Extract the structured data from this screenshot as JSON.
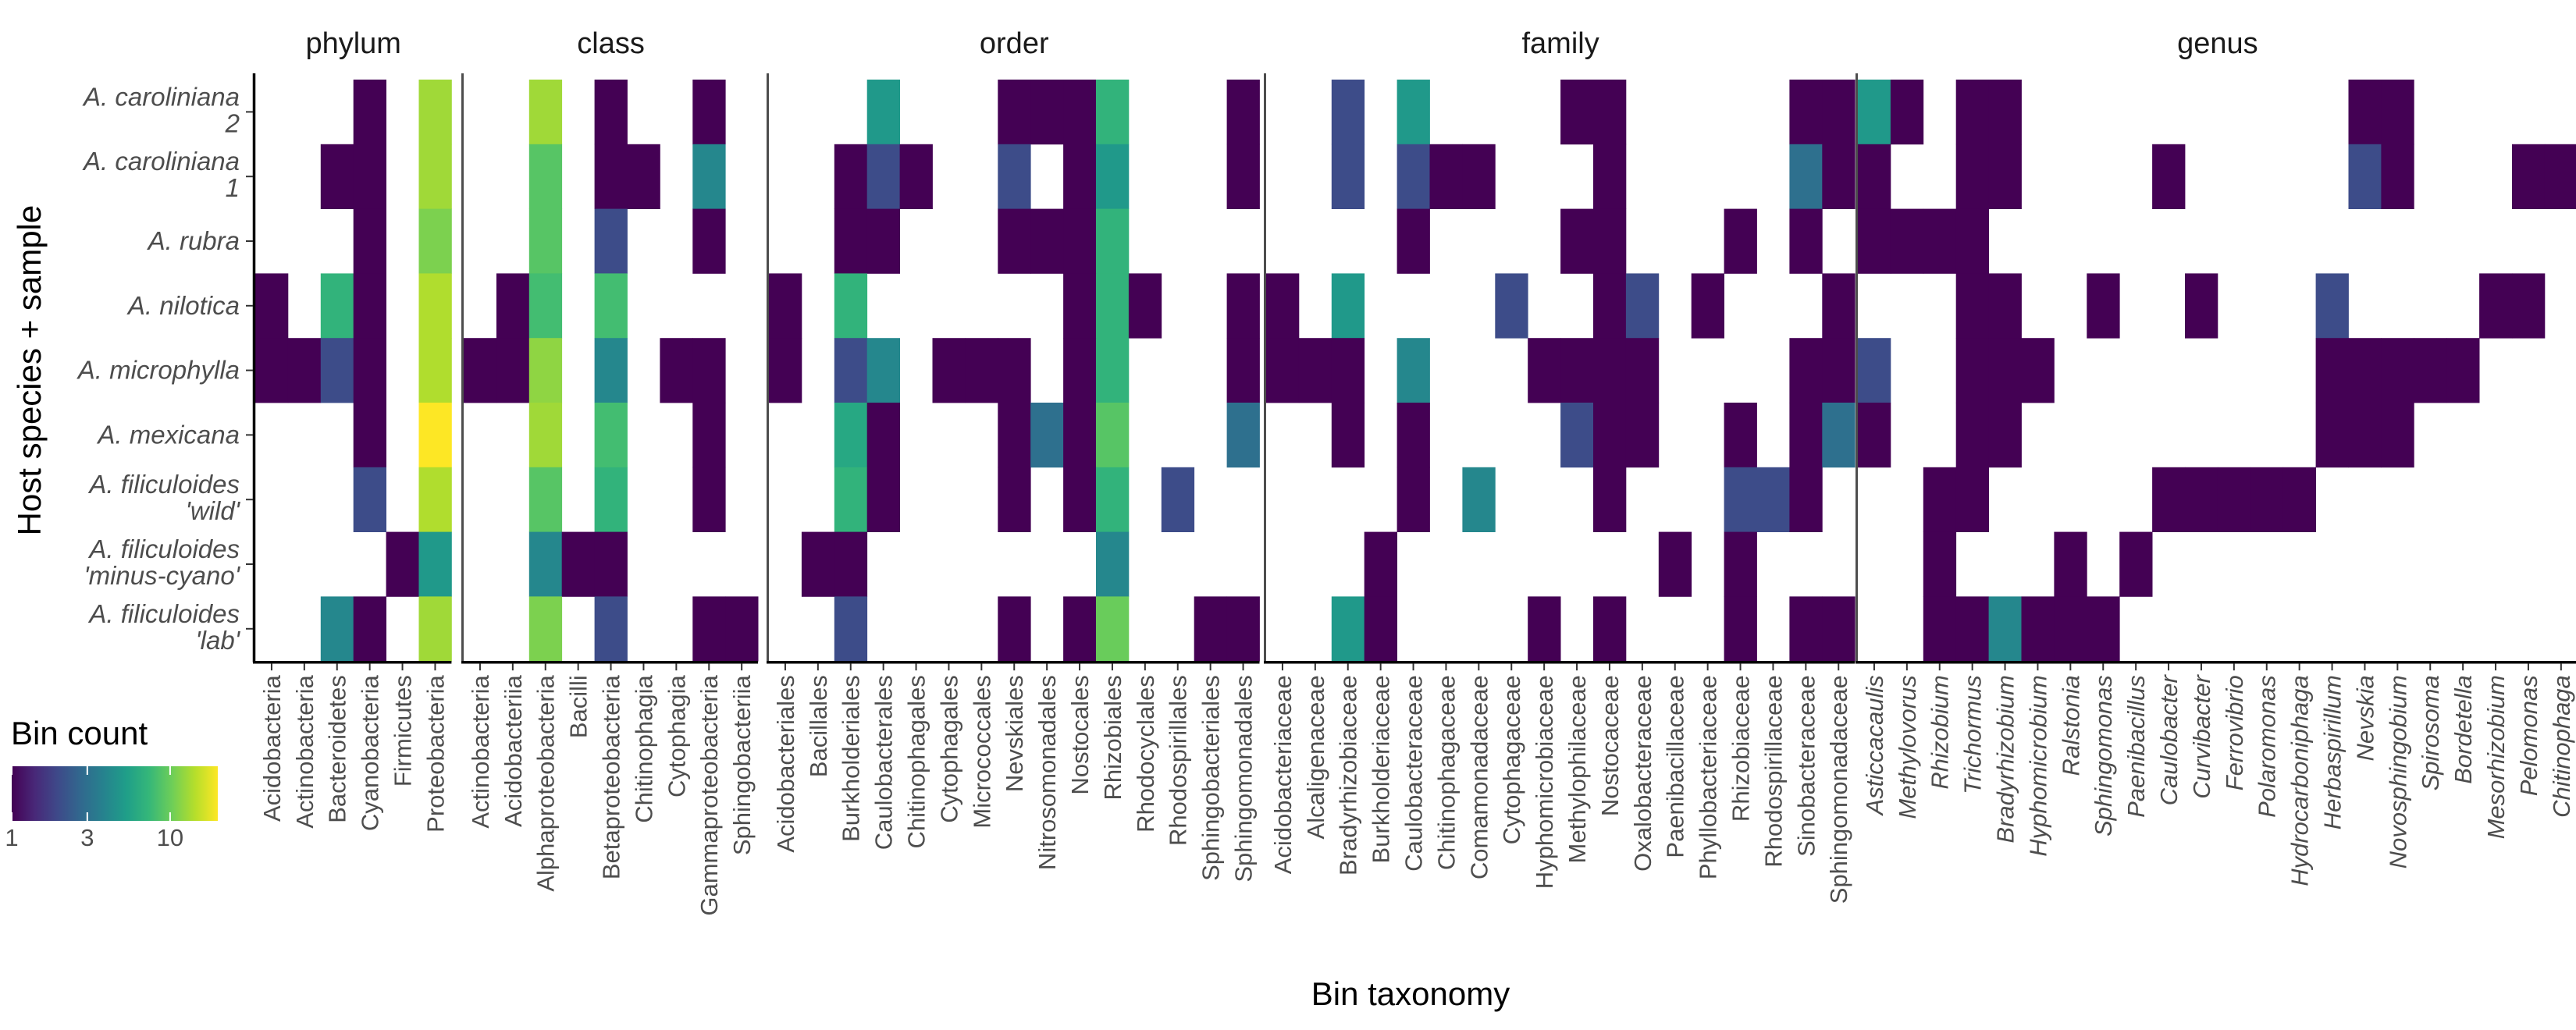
{
  "chart_data": {
    "type": "heatmap",
    "xlabel": "Bin taxonomy",
    "ylabel": "Host species + sample",
    "rows": [
      {
        "species": "A. caroliniana",
        "sample": "2"
      },
      {
        "species": "A. caroliniana",
        "sample": "1"
      },
      {
        "species": "A. rubra",
        "sample": ""
      },
      {
        "species": "A. nilotica",
        "sample": ""
      },
      {
        "species": "A. microphylla",
        "sample": ""
      },
      {
        "species": "A. mexicana",
        "sample": ""
      },
      {
        "species": "A. filiculoides",
        "sample": "'wild'"
      },
      {
        "species": "A. filiculoides",
        "sample": "'minus-cyano'"
      },
      {
        "species": "A. filiculoides",
        "sample": "'lab'"
      }
    ],
    "legend": {
      "title": "Bin count",
      "scale": "log",
      "min": 1,
      "max": 20,
      "ticks": [
        1,
        3,
        10
      ],
      "colors": [
        "#440154",
        "#482878",
        "#3e4989",
        "#31688e",
        "#26828e",
        "#1f9e89",
        "#35b779",
        "#6ece58",
        "#b5de2b",
        "#fde725"
      ]
    },
    "panels": [
      {
        "title": "phylum",
        "italic": false,
        "categories": [
          "Acidobacteria",
          "Actinobacteria",
          "Bacteroidetes",
          "Cyanobacteria",
          "Firmicutes",
          "Proteobacteria"
        ],
        "values": [
          [
            null,
            null,
            null,
            1,
            null,
            13
          ],
          [
            null,
            null,
            1,
            1,
            null,
            13
          ],
          [
            null,
            null,
            null,
            1,
            null,
            11
          ],
          [
            1,
            null,
            7,
            1,
            null,
            14
          ],
          [
            1,
            1,
            2,
            1,
            null,
            14
          ],
          [
            null,
            null,
            null,
            1,
            null,
            20
          ],
          [
            null,
            null,
            null,
            2,
            null,
            14
          ],
          [
            null,
            null,
            null,
            null,
            1,
            5
          ],
          [
            null,
            null,
            4,
            1,
            null,
            13
          ]
        ]
      },
      {
        "title": "class",
        "italic": false,
        "categories": [
          "Actinobacteria",
          "Acidobacteriia",
          "Alphaproteobacteria",
          "Bacilli",
          "Betaproteobacteria",
          "Chitinophagia",
          "Cytophagia",
          "Gammaproteobacteria",
          "Sphingobacteriia"
        ],
        "values": [
          [
            null,
            null,
            13,
            null,
            1,
            null,
            null,
            1,
            null
          ],
          [
            null,
            null,
            9,
            null,
            1,
            1,
            null,
            4,
            null
          ],
          [
            null,
            null,
            9,
            null,
            2,
            null,
            null,
            1,
            null
          ],
          [
            null,
            1,
            8,
            null,
            8,
            null,
            null,
            null,
            null
          ],
          [
            1,
            1,
            12,
            null,
            4,
            null,
            1,
            1,
            null
          ],
          [
            null,
            null,
            13,
            null,
            8,
            null,
            null,
            1,
            null
          ],
          [
            null,
            null,
            9,
            null,
            7,
            null,
            null,
            1,
            null
          ],
          [
            null,
            null,
            4,
            1,
            1,
            null,
            null,
            null,
            null
          ],
          [
            null,
            null,
            11,
            null,
            2,
            null,
            null,
            1,
            1
          ]
        ]
      },
      {
        "title": "order",
        "italic": false,
        "categories": [
          "Acidobacteriales",
          "Bacillales",
          "Burkholderiales",
          "Caulobacterales",
          "Chitinophagales",
          "Cytophagales",
          "Micrococcales",
          "Nevskiales",
          "Nitrosomonadales",
          "Nostocales",
          "Rhizobiales",
          "Rhodocyclales",
          "Rhodospirillales",
          "Sphingobacteriales",
          "Sphingomonadales"
        ],
        "values": [
          [
            null,
            null,
            null,
            5,
            null,
            null,
            null,
            1,
            1,
            1,
            7,
            null,
            null,
            null,
            1
          ],
          [
            null,
            null,
            1,
            2,
            1,
            null,
            null,
            2,
            null,
            1,
            5,
            null,
            null,
            null,
            1
          ],
          [
            null,
            null,
            1,
            1,
            null,
            null,
            null,
            1,
            1,
            1,
            7,
            null,
            null,
            null,
            null
          ],
          [
            1,
            null,
            7,
            null,
            null,
            null,
            null,
            null,
            null,
            1,
            7,
            1,
            null,
            null,
            1
          ],
          [
            1,
            null,
            2,
            4,
            null,
            1,
            1,
            1,
            null,
            1,
            7,
            null,
            null,
            null,
            1
          ],
          [
            null,
            null,
            6,
            1,
            null,
            null,
            null,
            1,
            3,
            1,
            9,
            null,
            null,
            null,
            3
          ],
          [
            null,
            null,
            7,
            1,
            null,
            null,
            null,
            1,
            null,
            1,
            7,
            null,
            2,
            null,
            null
          ],
          [
            null,
            1,
            1,
            null,
            null,
            null,
            null,
            null,
            null,
            null,
            4,
            null,
            null,
            null,
            null
          ],
          [
            null,
            null,
            2,
            null,
            null,
            null,
            null,
            1,
            null,
            1,
            10,
            null,
            null,
            1,
            1
          ]
        ]
      },
      {
        "title": "family",
        "italic": false,
        "categories": [
          "Acidobacteriaceae",
          "Alcaligenaceae",
          "Bradyrhizobiaceae",
          "Burkholderiaceae",
          "Caulobacteraceae",
          "Chitinophagaceae",
          "Comamonadaceae",
          "Cytophagaceae",
          "Hyphomicrobiaceae",
          "Methylophilaceae",
          "Nostocaceae",
          "Oxalobacteraceae",
          "Paenibacillaceae",
          "Phyllobacteriaceae",
          "Rhizobiaceae",
          "Rhodospirillaceae",
          "Sinobacteraceae",
          "Sphingomonadaceae"
        ],
        "values": [
          [
            null,
            null,
            2,
            null,
            5,
            null,
            null,
            null,
            null,
            1,
            1,
            null,
            null,
            null,
            null,
            null,
            1,
            1
          ],
          [
            null,
            null,
            2,
            null,
            2,
            1,
            1,
            null,
            null,
            null,
            1,
            null,
            null,
            null,
            null,
            null,
            3,
            1
          ],
          [
            null,
            null,
            null,
            null,
            1,
            null,
            null,
            null,
            null,
            1,
            1,
            null,
            null,
            null,
            1,
            null,
            1,
            null
          ],
          [
            1,
            null,
            5,
            null,
            null,
            null,
            null,
            2,
            null,
            null,
            1,
            2,
            null,
            1,
            null,
            null,
            null,
            1
          ],
          [
            1,
            1,
            1,
            null,
            4,
            null,
            null,
            null,
            1,
            1,
            1,
            1,
            null,
            null,
            null,
            null,
            1,
            1
          ],
          [
            null,
            null,
            1,
            null,
            1,
            null,
            null,
            null,
            null,
            2,
            1,
            1,
            null,
            null,
            1,
            null,
            1,
            3
          ],
          [
            null,
            null,
            null,
            null,
            1,
            null,
            4,
            null,
            null,
            null,
            1,
            null,
            null,
            null,
            2,
            2,
            1,
            null
          ],
          [
            null,
            null,
            null,
            1,
            null,
            null,
            null,
            null,
            null,
            null,
            null,
            null,
            1,
            null,
            1,
            null,
            null,
            null
          ],
          [
            null,
            null,
            5,
            1,
            null,
            null,
            null,
            null,
            1,
            null,
            1,
            null,
            null,
            null,
            1,
            null,
            1,
            1
          ]
        ]
      },
      {
        "title": "genus",
        "italic": true,
        "categories": [
          "Asticcacaulis",
          "Methylovorus",
          "Rhizobium",
          "Trichormus",
          "Bradyrhizobium",
          "Hyphomicrobium",
          "Ralstonia",
          "Sphingomonas",
          "Paenibacillus",
          "Caulobacter",
          "Curvibacter",
          "Ferrovibrio",
          "Polaromonas",
          "Hydrocarboniphaga",
          "Herbaspirillum",
          "Nevskia",
          "Novosphingobium",
          "Spirosoma",
          "Bordetella",
          "Mesorhizobium",
          "Pelomonas",
          "Chitinophaga"
        ],
        "values": [
          [
            5,
            1,
            null,
            1,
            1,
            null,
            null,
            null,
            null,
            null,
            null,
            null,
            null,
            null,
            null,
            1,
            1,
            null,
            null,
            null,
            null,
            null
          ],
          [
            1,
            null,
            null,
            1,
            1,
            null,
            null,
            null,
            null,
            1,
            null,
            null,
            null,
            null,
            null,
            2,
            1,
            null,
            null,
            null,
            1,
            1
          ],
          [
            1,
            1,
            1,
            1,
            null,
            null,
            null,
            null,
            null,
            null,
            null,
            null,
            null,
            null,
            null,
            null,
            null,
            null,
            null,
            null,
            null,
            null
          ],
          [
            null,
            null,
            null,
            1,
            1,
            null,
            null,
            1,
            null,
            null,
            1,
            null,
            null,
            null,
            2,
            null,
            null,
            null,
            null,
            1,
            1,
            null
          ],
          [
            2,
            null,
            null,
            1,
            1,
            1,
            null,
            null,
            null,
            null,
            null,
            null,
            null,
            null,
            1,
            1,
            1,
            1,
            1,
            null,
            null,
            null
          ],
          [
            1,
            null,
            null,
            1,
            1,
            null,
            null,
            null,
            null,
            null,
            null,
            null,
            null,
            null,
            1,
            1,
            1,
            null,
            null,
            null,
            null,
            null
          ],
          [
            null,
            null,
            1,
            1,
            null,
            null,
            null,
            null,
            null,
            1,
            1,
            1,
            1,
            1,
            null,
            null,
            null,
            null,
            null,
            null,
            null,
            null
          ],
          [
            null,
            null,
            1,
            null,
            null,
            null,
            1,
            null,
            1,
            null,
            null,
            null,
            null,
            null,
            null,
            null,
            null,
            null,
            null,
            null,
            null,
            null
          ],
          [
            null,
            null,
            1,
            1,
            4,
            1,
            1,
            1,
            null,
            null,
            null,
            null,
            null,
            null,
            null,
            null,
            null,
            null,
            null,
            null,
            null,
            null
          ]
        ]
      }
    ]
  }
}
